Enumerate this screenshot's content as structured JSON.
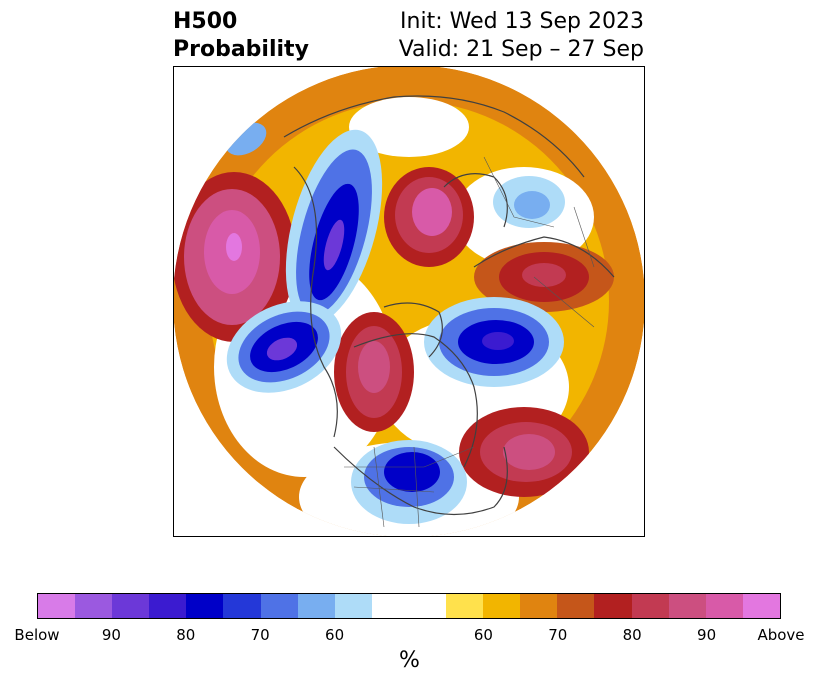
{
  "header": {
    "title_line1": "H500",
    "title_line2": "Probability",
    "init": "Init: Wed 13 Sep 2023",
    "valid": "Valid: 21 Sep – 27 Sep"
  },
  "map": {
    "projection": "north-polar-stereographic",
    "background_color": "#ffffff",
    "coastline_color": "#404040",
    "features": [
      {
        "label": "Above",
        "level": 90,
        "color": "#e377e0"
      },
      {
        "label": "Below",
        "level": 80,
        "color": "#0000c8"
      }
    ]
  },
  "colorbar": {
    "colors": [
      "#d87be8",
      "#9b59e0",
      "#6c38d8",
      "#3b1bd0",
      "#0000c8",
      "#2438d8",
      "#4f72e6",
      "#78aef0",
      "#aedcf8",
      "#ffffff",
      "#ffffff",
      "#ffe14c",
      "#f2b500",
      "#e08410",
      "#c5561a",
      "#b22020",
      "#c23a52",
      "#cc4f80",
      "#d85aa8",
      "#e377e0"
    ],
    "tick_labels": [
      "Below",
      "90",
      "80",
      "70",
      "60",
      "60",
      "70",
      "80",
      "90",
      "Above"
    ],
    "label": "%"
  }
}
